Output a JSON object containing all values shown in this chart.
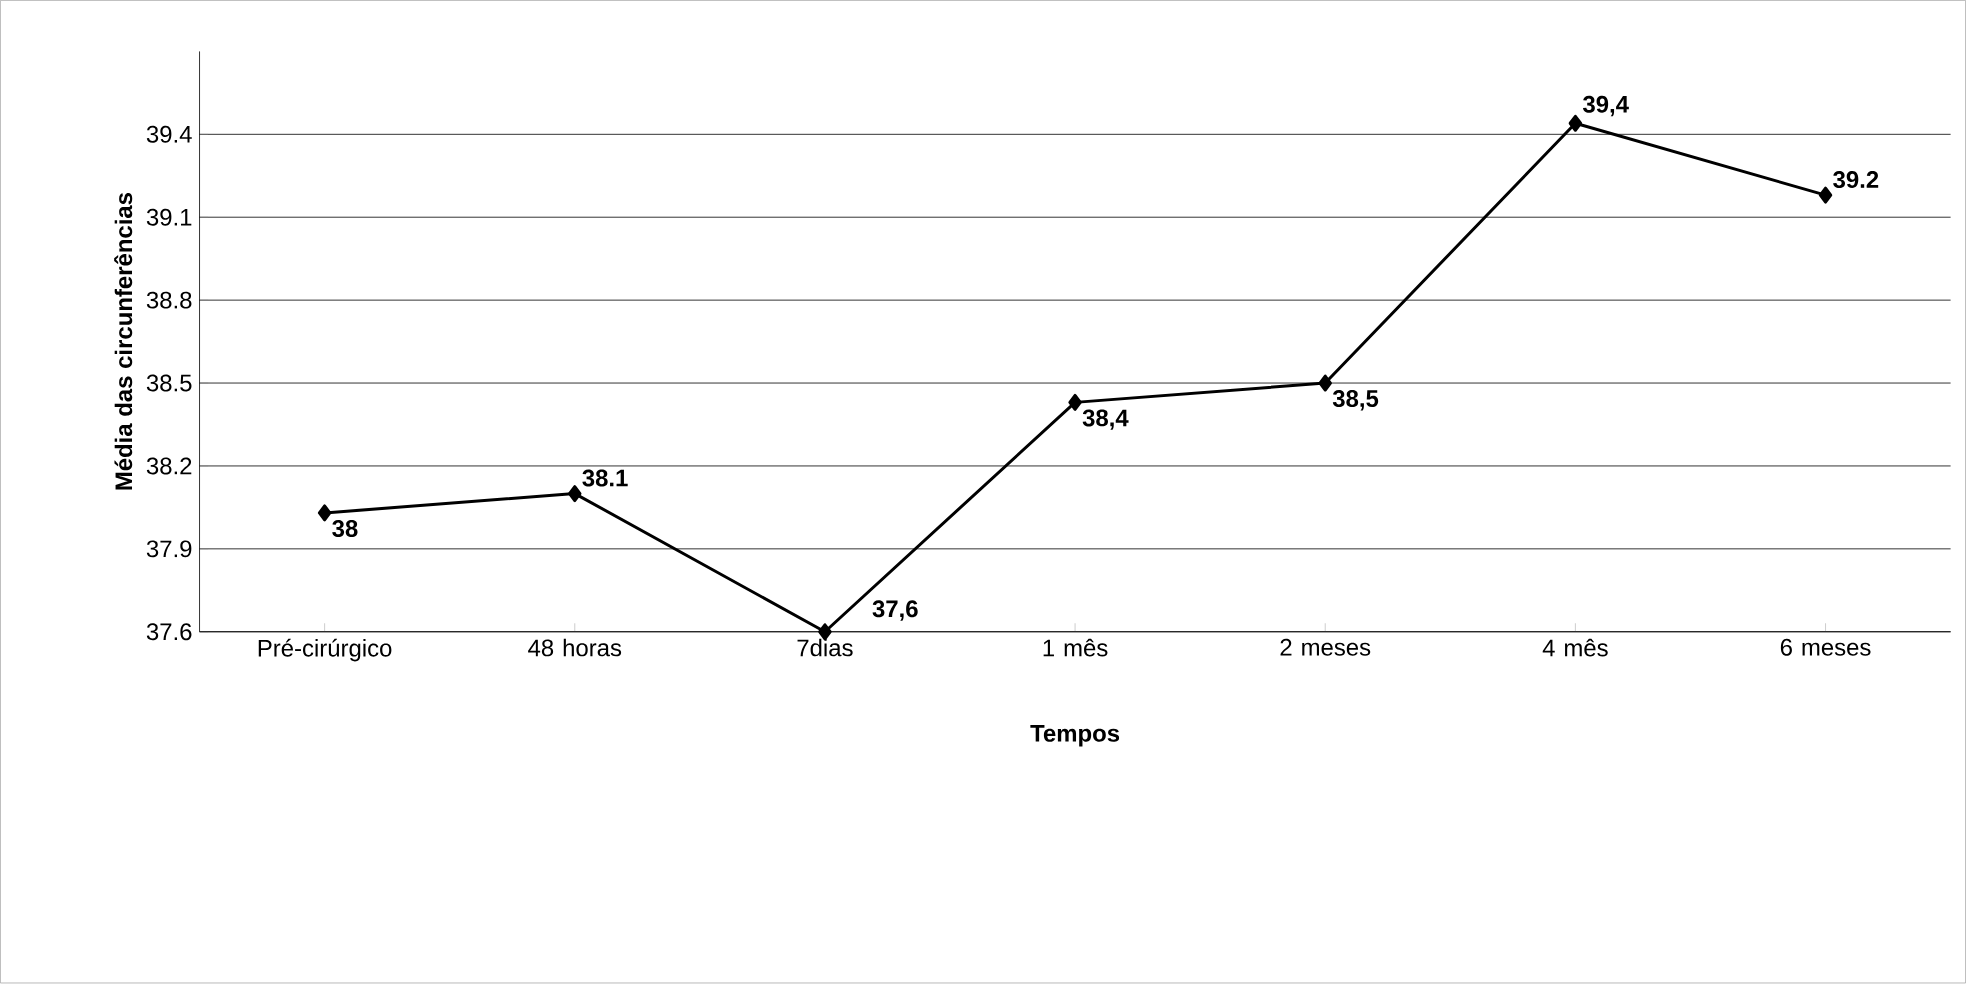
{
  "chart_data": {
    "type": "line",
    "xlabel": "Tempos",
    "ylabel": "Média das circunferências",
    "categories": [
      "Pré-cirúrgico",
      "48 horas",
      "7dias",
      "1 mês",
      "2 meses",
      "4 mês",
      "6 meses"
    ],
    "values": [
      38.03,
      38.1,
      37.6,
      38.43,
      38.5,
      39.44,
      39.18
    ],
    "value_labels": [
      "38",
      "38.1",
      "37,6",
      "38,4",
      "38,5",
      "39,4",
      "39.2"
    ],
    "color": "#000000",
    "marker": "diamond",
    "line_style": "solid",
    "ylim": [
      37.6,
      39.7
    ],
    "yticks": [
      37.6,
      37.9,
      38.2,
      38.5,
      38.8,
      39.1,
      39.4
    ],
    "grid": "y"
  }
}
